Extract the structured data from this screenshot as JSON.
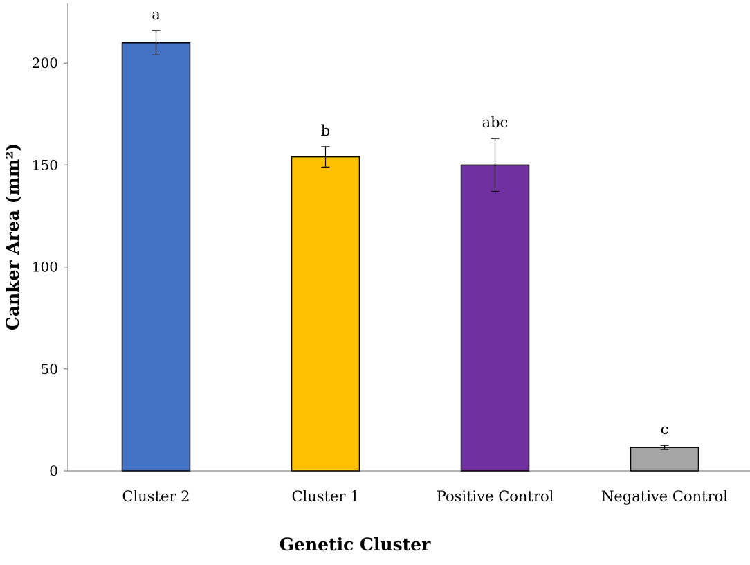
{
  "chart_data": {
    "type": "bar",
    "title": "",
    "xlabel": "Genetic Cluster",
    "ylabel": "Canker Area (mm²)",
    "categories": [
      "Cluster 2",
      "Cluster 1",
      "Positive Control",
      "Negative Control"
    ],
    "values": [
      210,
      154,
      150,
      11.5
    ],
    "errors": [
      6,
      5,
      13,
      1
    ],
    "significance_letters": [
      "a",
      "b",
      "abc",
      "c"
    ],
    "bar_colors": [
      "#4472C4",
      "#FFC000",
      "#7030A0",
      "#A5A5A5"
    ],
    "ylim": [
      0,
      230
    ],
    "yticks": [
      0,
      50,
      100,
      150,
      200
    ],
    "grid": false,
    "legend": "none"
  }
}
